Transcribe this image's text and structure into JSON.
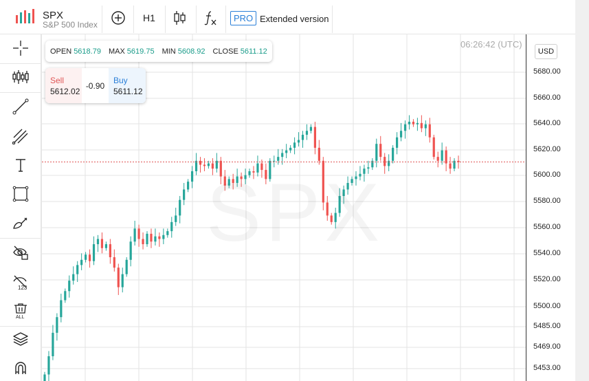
{
  "header": {
    "symbol": "SPX",
    "symbol_name": "S&P 500 Index",
    "interval": "H1",
    "pro_label": "PRO",
    "extended_label": "Extended version"
  },
  "left_toolbar": [
    "crosshair-icon",
    "indicators-icon",
    "trend-line-icon",
    "pitchfork-icon",
    "text-icon",
    "rectangle-icon",
    "brush-icon",
    "hide-drawings-icon",
    "hide-labels-icon",
    "delete-all-icon",
    "layers-icon",
    "magnet-icon"
  ],
  "ohlc": {
    "open_label": "OPEN",
    "open": "5618.79",
    "max_label": "MAX",
    "max": "5619.75",
    "min_label": "MIN",
    "min": "5608.92",
    "close_label": "CLOSE",
    "close": "5611.12"
  },
  "trade": {
    "sell_label": "Sell",
    "sell_price": "5612.02",
    "spread": "-0.90",
    "buy_label": "Buy",
    "buy_price": "5611.12"
  },
  "chart": {
    "time": "06:26:42 (UTC)",
    "watermark": "SPX",
    "currency": "USD",
    "price_ticks": [
      "5680.00",
      "5660.00",
      "5640.00",
      "5620.00",
      "5600.00",
      "5580.00",
      "5560.00",
      "5540.00",
      "5520.00",
      "5500.00",
      "5485.00",
      "5469.00",
      "5453.00"
    ]
  },
  "colors": {
    "up": "#26a69a",
    "down": "#ef5350",
    "accent": "#2a7fd8",
    "current_line": "#e05555"
  },
  "chart_data": {
    "type": "candlestick",
    "current_price": 5611.12,
    "candles_close": [
      5448,
      5462,
      5480,
      5492,
      5505,
      5512,
      5520,
      5525,
      5532,
      5536,
      5540,
      5535,
      5548,
      5552,
      5545,
      5548,
      5538,
      5530,
      5515,
      5525,
      5536,
      5550,
      5560,
      5552,
      5548,
      5556,
      5550,
      5554,
      5552,
      5555,
      5558,
      5565,
      5570,
      5582,
      5590,
      5596,
      5604,
      5612,
      5609,
      5608,
      5610,
      5606,
      5612,
      5600,
      5593,
      5598,
      5595,
      5600,
      5598,
      5601,
      5604,
      5603,
      5610,
      5605,
      5598,
      5612,
      5612,
      5615,
      5618,
      5620,
      5622,
      5626,
      5628,
      5632,
      5635,
      5638,
      5622,
      5612,
      5580,
      5570,
      5565,
      5572,
      5585,
      5590,
      5595,
      5598,
      5600,
      5602,
      5606,
      5607,
      5612,
      5625,
      5615,
      5608,
      5612,
      5622,
      5630,
      5635,
      5640,
      5642,
      5640,
      5641,
      5637,
      5640,
      5630,
      5615,
      5612,
      5620,
      5610,
      5606,
      5612,
      5611
    ]
  }
}
